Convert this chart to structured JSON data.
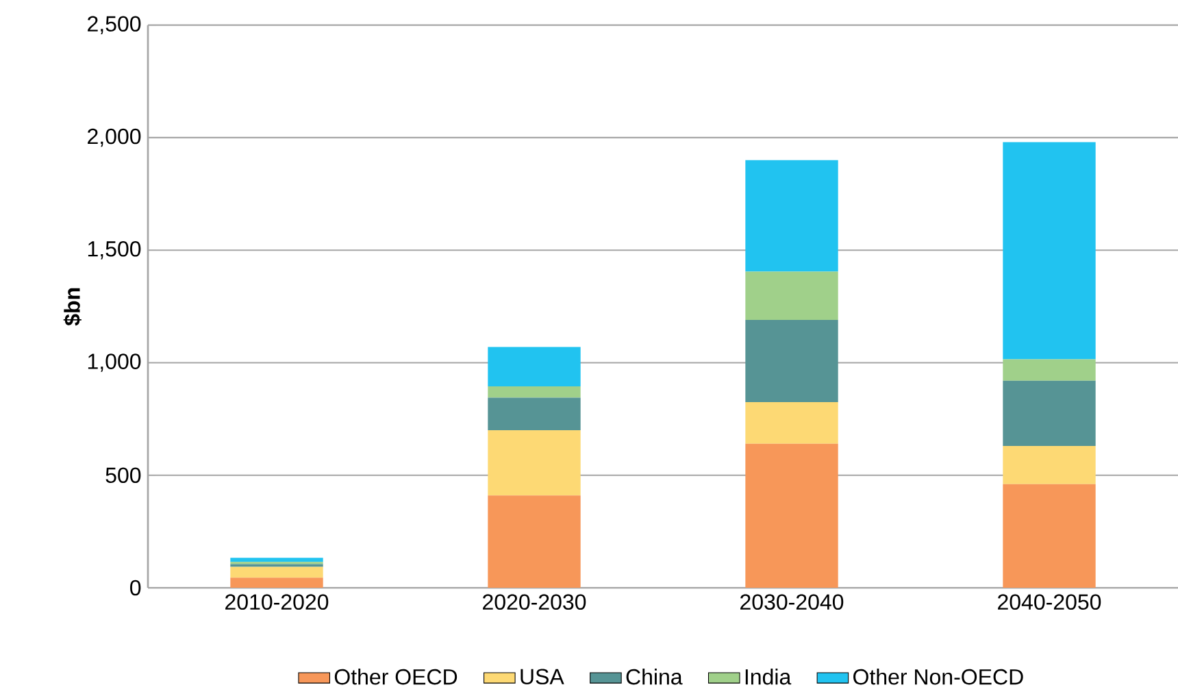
{
  "chart_data": {
    "type": "bar",
    "stacked": true,
    "ylabel": "$bn",
    "categories": [
      "2010-2020",
      "2020-2030",
      "2030-2040",
      "2040-2050"
    ],
    "series": [
      {
        "name": "Other OECD",
        "color": "#f79759",
        "values": [
          45,
          410,
          640,
          460
        ]
      },
      {
        "name": "USA",
        "color": "#fdd974",
        "values": [
          48,
          290,
          185,
          170
        ]
      },
      {
        "name": "China",
        "color": "#569495",
        "values": [
          12,
          145,
          365,
          290
        ]
      },
      {
        "name": "India",
        "color": "#a0d08a",
        "values": [
          10,
          50,
          215,
          95
        ]
      },
      {
        "name": "Other Non-OECD",
        "color": "#21c3f0",
        "values": [
          18,
          175,
          495,
          965
        ]
      }
    ],
    "ylim": [
      0,
      2500
    ],
    "yticks": [
      {
        "value": 0,
        "label": "0"
      },
      {
        "value": 500,
        "label": "500"
      },
      {
        "value": 1000,
        "label": "1,000"
      },
      {
        "value": 1500,
        "label": "1,500"
      },
      {
        "value": 2000,
        "label": "2,000"
      },
      {
        "value": 2500,
        "label": "2,500"
      }
    ],
    "grid": "y",
    "legend": "bottom"
  }
}
